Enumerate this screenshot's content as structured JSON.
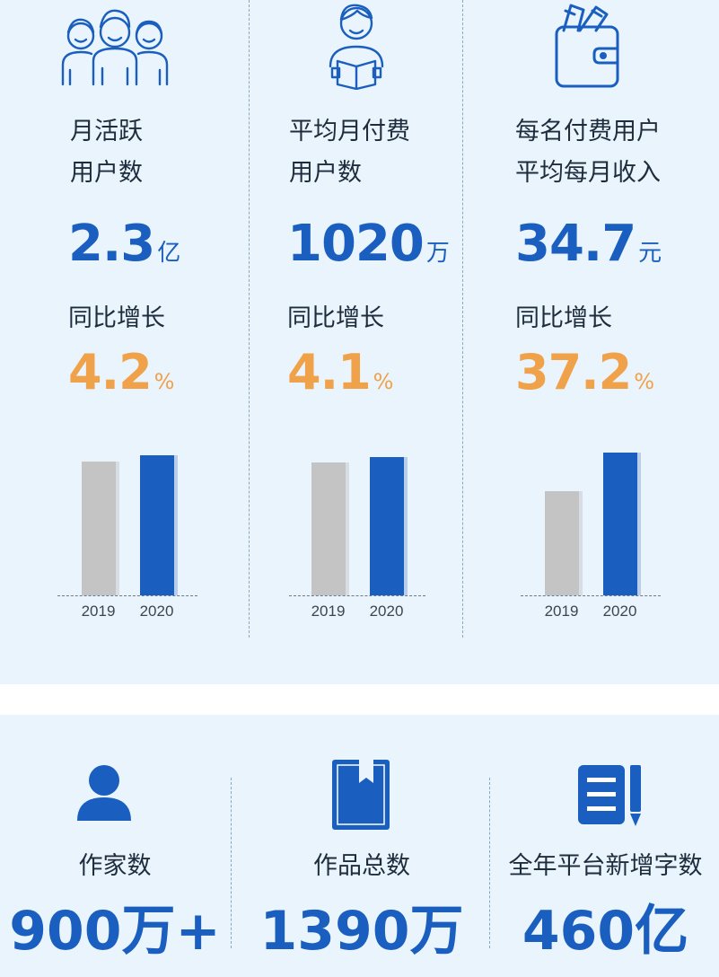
{
  "metrics": [
    {
      "icon": "people-group-icon",
      "label_line1": "月活跃",
      "label_line2": "用户数",
      "value": "2.3",
      "value_unit": "亿",
      "growth_label": "同比增长",
      "growth_value": "4.2",
      "growth_unit": "%",
      "chart_data": {
        "type": "bar",
        "categories": [
          "2019",
          "2020"
        ],
        "values": [
          2.2,
          2.3
        ],
        "ylim": [
          0,
          2.35
        ],
        "colors": [
          "#c4c4c4",
          "#1a5fbf"
        ]
      }
    },
    {
      "icon": "person-reading-book-icon",
      "label_line1": "平均月付费",
      "label_line2": "用户数",
      "value": "1020",
      "value_unit": "万",
      "growth_label": "同比增长",
      "growth_value": "4.1",
      "growth_unit": "%",
      "chart_data": {
        "type": "bar",
        "categories": [
          "2019",
          "2020"
        ],
        "values": [
          980,
          1020
        ],
        "ylim": [
          0,
          1050
        ],
        "colors": [
          "#c4c4c4",
          "#1a5fbf"
        ]
      }
    },
    {
      "icon": "wallet-icon",
      "label_line1": "每名付费用户",
      "label_line2": "平均每月收入",
      "value": "34.7",
      "value_unit": "元",
      "growth_label": "同比增长",
      "growth_value": "37.2",
      "growth_unit": "%",
      "chart_data": {
        "type": "bar",
        "categories": [
          "2019",
          "2020"
        ],
        "values": [
          25.3,
          34.7
        ],
        "ylim": [
          0,
          34.7
        ],
        "colors": [
          "#c4c4c4",
          "#1a5fbf"
        ]
      }
    }
  ],
  "stats": [
    {
      "icon": "person-icon",
      "label": "作家数",
      "value": "900万+"
    },
    {
      "icon": "book-bookmark-icon",
      "label": "作品总数",
      "value": "1390万"
    },
    {
      "icon": "document-pencil-icon",
      "label": "全年平台新增字数",
      "value": "460亿"
    }
  ],
  "colors": {
    "primary_blue": "#1a5fbf",
    "growth_orange": "#f0a24a",
    "bar_grey": "#c4c4c4",
    "panel_background": "#eaf4fc"
  }
}
